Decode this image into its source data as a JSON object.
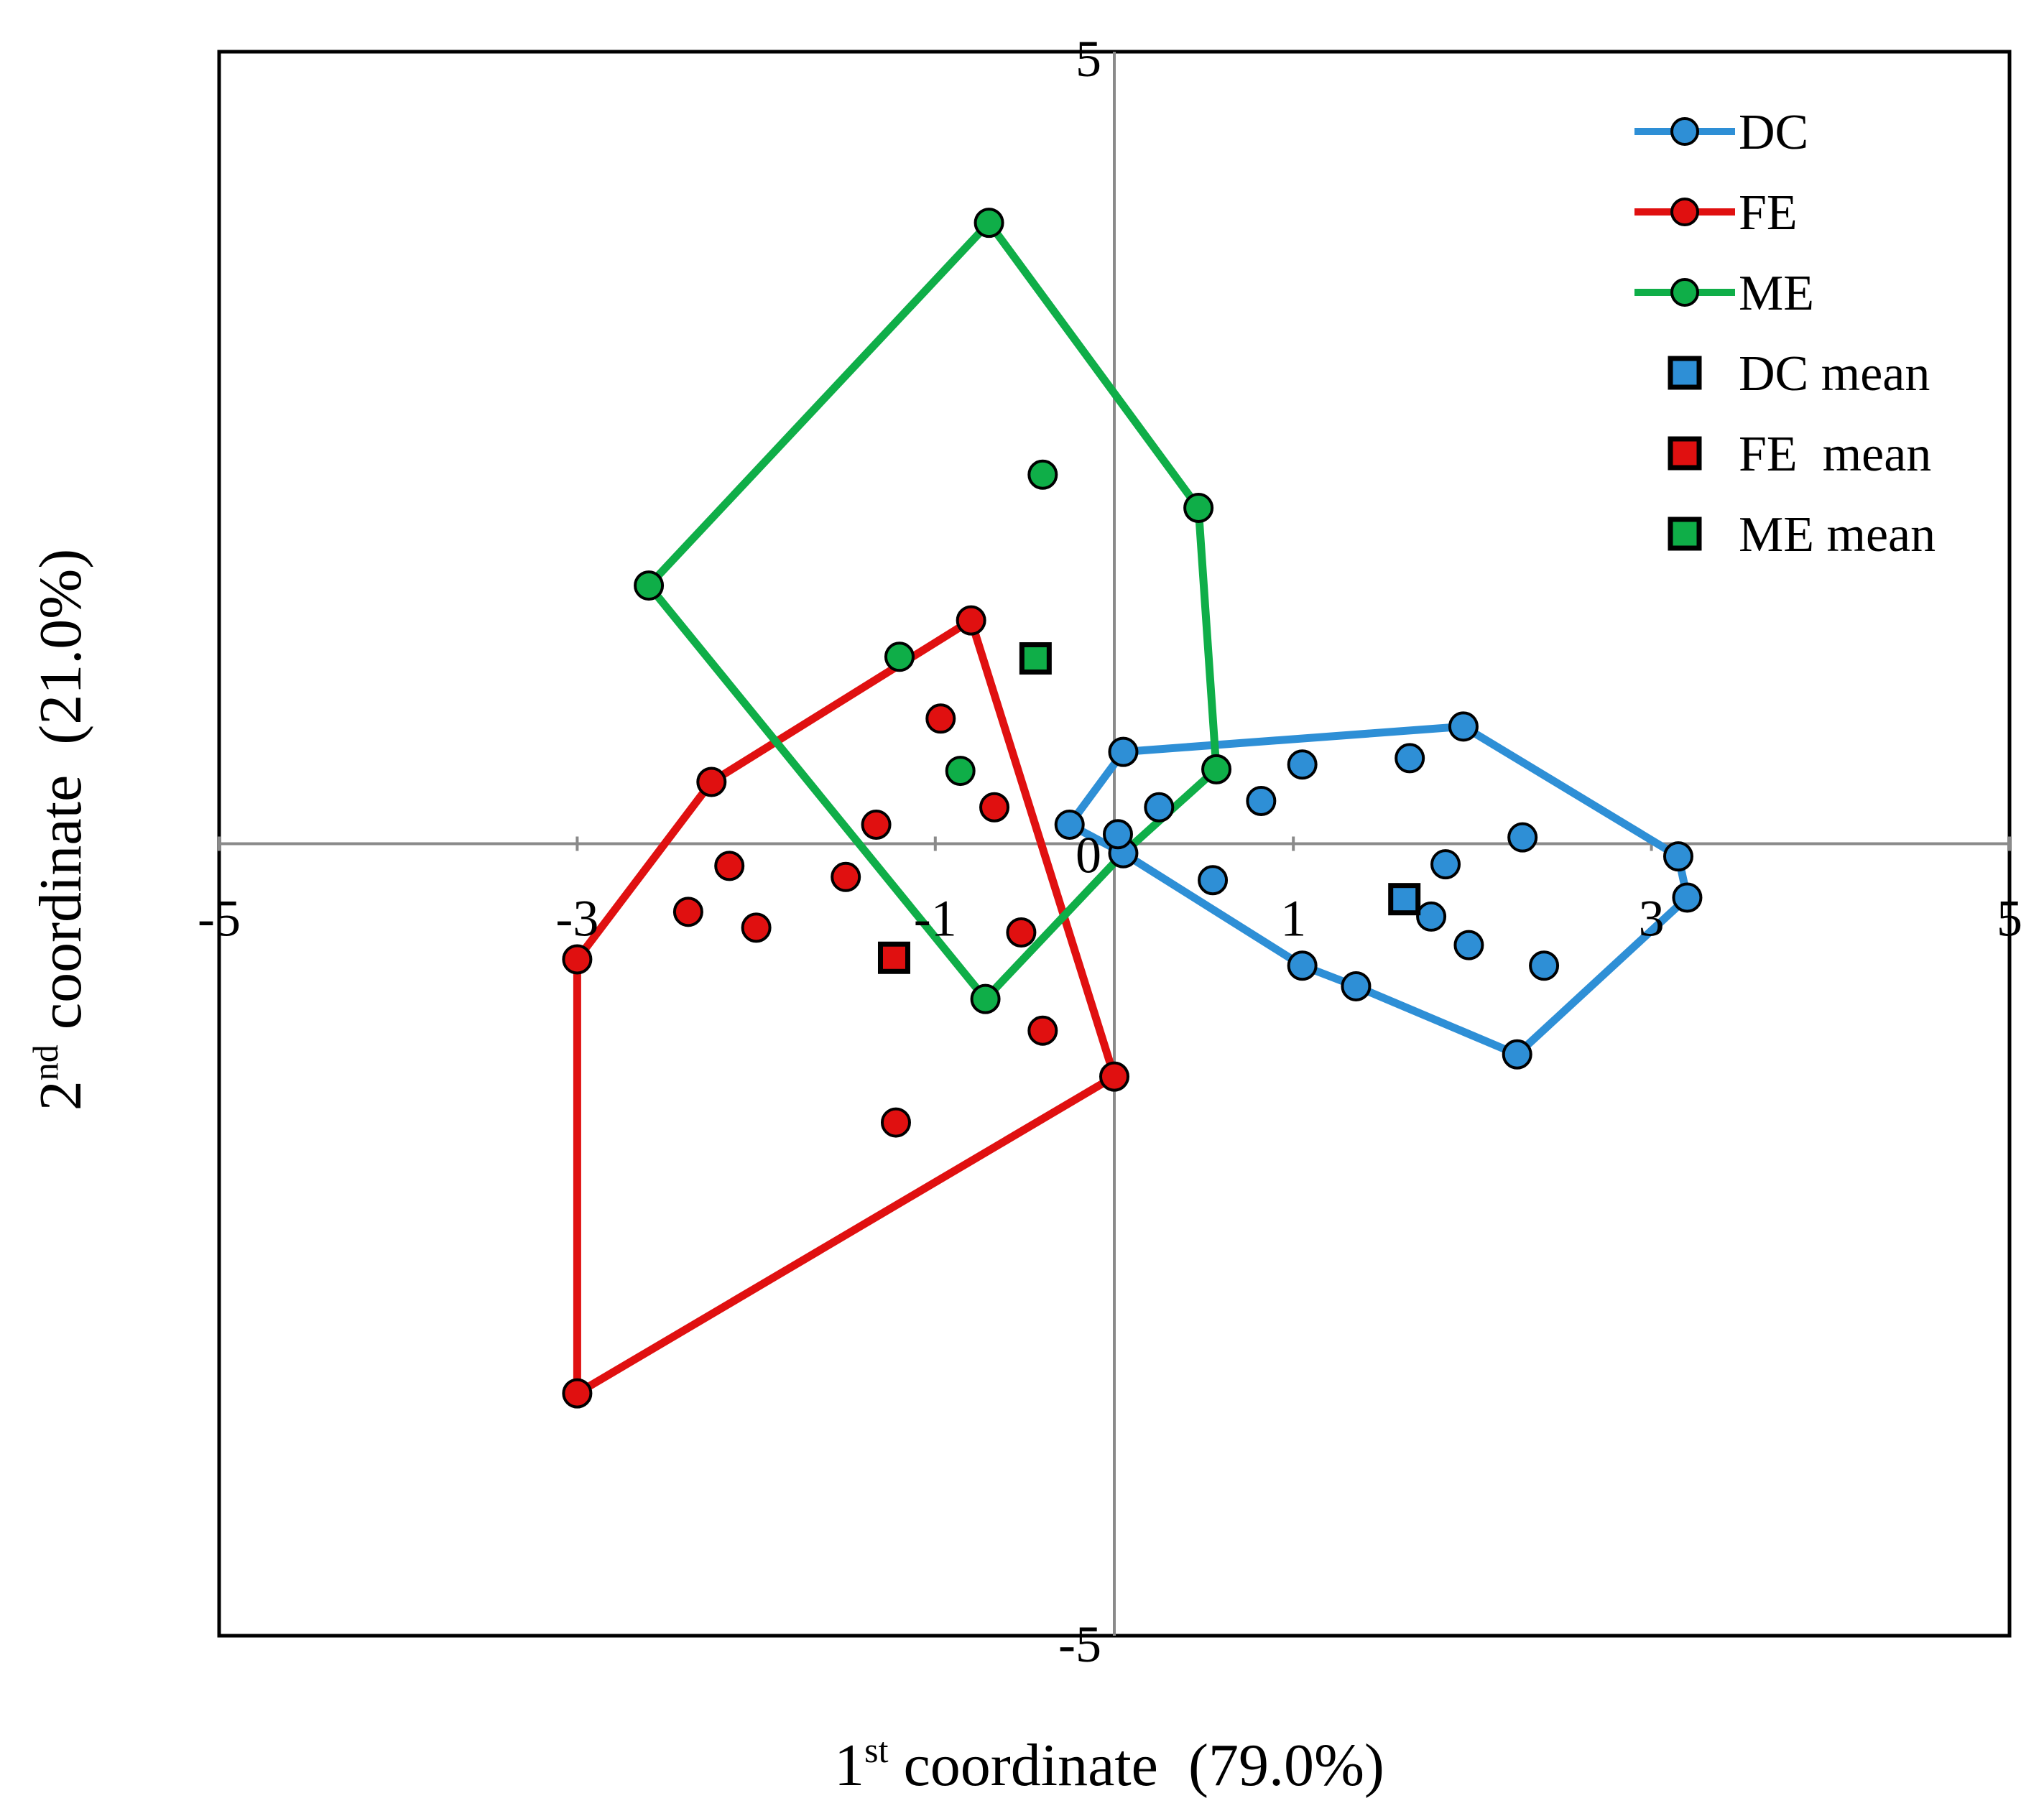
{
  "chart_data": {
    "type": "scatter",
    "title": "",
    "xlabel": {
      "prefix": "1",
      "superscript": "st",
      "text": " coordinate  (79.0%)"
    },
    "ylabel": {
      "prefix": "2",
      "superscript": "nd",
      "text": " coordinate  (21.0%)"
    },
    "xlim": [
      -5,
      5
    ],
    "ylim": [
      -5,
      5
    ],
    "x_ticks": [
      {
        "value": -5,
        "label": "-5"
      },
      {
        "value": -3,
        "label": "-3"
      },
      {
        "value": -1,
        "label": "-1"
      },
      {
        "value": 1,
        "label": "1"
      },
      {
        "value": 3,
        "label": "3"
      },
      {
        "value": 5,
        "label": "5"
      }
    ],
    "y_ticks": [
      {
        "value": 5,
        "label": "5"
      },
      {
        "value": 0,
        "label": "0"
      },
      {
        "value": -5,
        "label": "-5"
      }
    ],
    "grid": false,
    "legend_position": "top-right",
    "series": [
      {
        "name": "DC",
        "color": "#2E8FD6",
        "hull": [
          [
            -0.25,
            0.12
          ],
          [
            0.05,
            0.58
          ],
          [
            1.95,
            0.74
          ],
          [
            3.15,
            -0.08
          ],
          [
            3.2,
            -0.34
          ],
          [
            2.25,
            -1.33
          ],
          [
            1.35,
            -0.9
          ],
          [
            1.05,
            -0.77
          ],
          [
            0.05,
            -0.06
          ]
        ],
        "points": [
          [
            -0.25,
            0.12
          ],
          [
            0.05,
            0.58
          ],
          [
            1.95,
            0.74
          ],
          [
            3.15,
            -0.08
          ],
          [
            3.2,
            -0.34
          ],
          [
            2.25,
            -1.33
          ],
          [
            1.35,
            -0.9
          ],
          [
            1.05,
            -0.77
          ],
          [
            0.05,
            -0.06
          ],
          [
            0.02,
            0.06
          ],
          [
            0.25,
            0.23
          ],
          [
            0.55,
            -0.23
          ],
          [
            0.82,
            0.27
          ],
          [
            1.05,
            0.5
          ],
          [
            1.65,
            0.54
          ],
          [
            1.77,
            -0.46
          ],
          [
            1.85,
            -0.13
          ],
          [
            1.98,
            -0.64
          ],
          [
            2.28,
            0.04
          ],
          [
            2.4,
            -0.77
          ]
        ]
      },
      {
        "name": "FE",
        "color": "#E01010",
        "hull": [
          [
            -0.8,
            1.41
          ],
          [
            -2.25,
            0.39
          ],
          [
            -3.0,
            -0.73
          ],
          [
            -3.0,
            -3.47
          ],
          [
            0.0,
            -1.47
          ]
        ],
        "points": [
          [
            -0.8,
            1.41
          ],
          [
            -2.25,
            0.39
          ],
          [
            -3.0,
            -0.73
          ],
          [
            -3.0,
            -3.47
          ],
          [
            0.0,
            -1.47
          ],
          [
            -0.97,
            0.79
          ],
          [
            -0.67,
            0.23
          ],
          [
            -1.33,
            0.12
          ],
          [
            -2.15,
            -0.14
          ],
          [
            -1.5,
            -0.21
          ],
          [
            -2.38,
            -0.43
          ],
          [
            -2.0,
            -0.53
          ],
          [
            -0.52,
            -0.56
          ],
          [
            -0.4,
            -1.18
          ],
          [
            -1.22,
            -1.76
          ]
        ]
      },
      {
        "name": "ME",
        "color": "#0FAE48",
        "hull": [
          [
            -0.7,
            3.92
          ],
          [
            0.47,
            2.12
          ],
          [
            0.57,
            0.47
          ],
          [
            0.05,
            -0.06
          ],
          [
            -0.72,
            -0.98
          ],
          [
            -2.6,
            1.63
          ]
        ],
        "points": [
          [
            -0.7,
            3.92
          ],
          [
            0.47,
            2.12
          ],
          [
            0.57,
            0.47
          ],
          [
            -0.72,
            -0.98
          ],
          [
            -2.6,
            1.63
          ],
          [
            -0.4,
            2.33
          ],
          [
            -1.2,
            1.18
          ],
          [
            -0.86,
            0.46
          ]
        ]
      }
    ],
    "means": [
      {
        "name": "DC mean",
        "color": "#2E8FD6",
        "x": 1.62,
        "y": -0.35
      },
      {
        "name": "FE  mean",
        "color": "#E01010",
        "x": -1.23,
        "y": -0.72
      },
      {
        "name": "ME mean",
        "color": "#0FAE48",
        "x": -0.44,
        "y": 1.17
      }
    ],
    "legend": [
      {
        "label": "DC",
        "kind": "line",
        "color": "#2E8FD6"
      },
      {
        "label": "FE",
        "kind": "line",
        "color": "#E01010"
      },
      {
        "label": "ME",
        "kind": "line",
        "color": "#0FAE48"
      },
      {
        "label": "DC mean",
        "kind": "square",
        "color": "#2E8FD6"
      },
      {
        "label": "FE  mean",
        "kind": "square",
        "color": "#E01010"
      },
      {
        "label": "ME mean",
        "kind": "square",
        "color": "#0FAE48"
      }
    ]
  }
}
